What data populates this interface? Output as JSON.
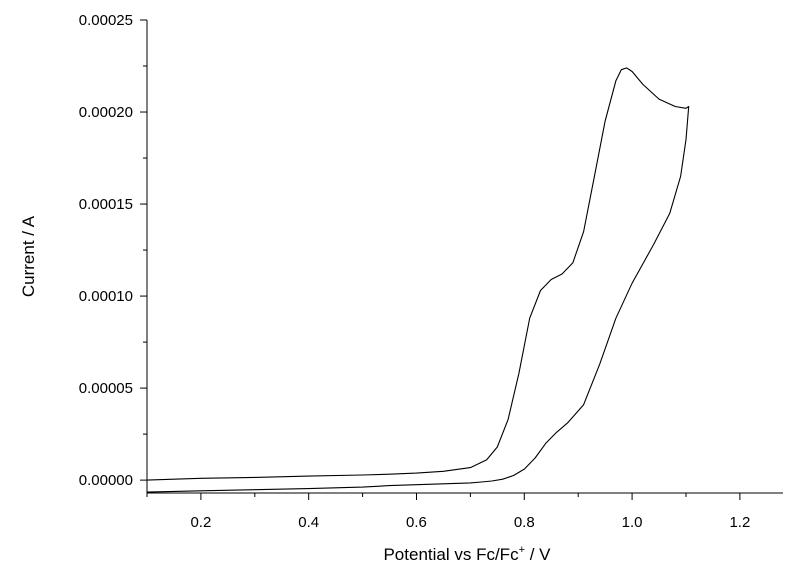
{
  "chart_data": {
    "type": "line",
    "title": "",
    "xlabel": "Potential vs Fc/Fc",
    "xlabel_superscript": "+",
    "xlabel_suffix": " / V",
    "ylabel": "Current / A",
    "xlim": [
      0.1,
      1.28
    ],
    "ylim": [
      -7e-06,
      0.00025
    ],
    "x_ticks": [
      0.2,
      0.4,
      0.6,
      0.8,
      1.0,
      1.2
    ],
    "x_tick_labels": [
      "0.2",
      "0.4",
      "0.6",
      "0.8",
      "1.0",
      "1.2"
    ],
    "y_ticks": [
      0.0,
      5e-05,
      0.0001,
      0.00015,
      0.0002,
      0.00025
    ],
    "y_tick_labels": [
      "0.00000",
      "0.00005",
      "0.00010",
      "0.00015",
      "0.00020",
      "0.00025"
    ],
    "grid": false,
    "series": [
      {
        "x": [
          0.1,
          0.2,
          0.3,
          0.4,
          0.5,
          0.55,
          0.6,
          0.65,
          0.7,
          0.73,
          0.75,
          0.77,
          0.79,
          0.81,
          0.83,
          0.85,
          0.87,
          0.89,
          0.91,
          0.93,
          0.95,
          0.97,
          0.98,
          0.99,
          1.0,
          1.02,
          1.05,
          1.08,
          1.1,
          1.105,
          1.1,
          1.09,
          1.07,
          1.04,
          1.0,
          0.97,
          0.94,
          0.91,
          0.88,
          0.86,
          0.84,
          0.82,
          0.8,
          0.78,
          0.76,
          0.74,
          0.72,
          0.7,
          0.65,
          0.6,
          0.55,
          0.5,
          0.45,
          0.4,
          0.3,
          0.2,
          0.1
        ],
        "y": [
          0.0,
          1e-06,
          1.5e-06,
          2.2e-06,
          2.8e-06,
          3.2e-06,
          3.8e-06,
          4.8e-06,
          6.8e-06,
          1.1e-05,
          1.8e-05,
          3.3e-05,
          5.8e-05,
          8.8e-05,
          0.000103,
          0.000109,
          0.000112,
          0.000118,
          0.000135,
          0.000165,
          0.000195,
          0.000217,
          0.000223,
          0.000224,
          0.000222,
          0.000215,
          0.000207,
          0.000203,
          0.000202,
          0.000203,
          0.000185,
          0.000165,
          0.000145,
          0.000128,
          0.000107,
          8.8e-05,
          6.3e-05,
          4.1e-05,
          3.1e-05,
          2.6e-05,
          2e-05,
          1.2e-05,
          6e-06,
          2.5e-06,
          5e-07,
          -5e-07,
          -1e-06,
          -1.5e-06,
          -2e-06,
          -2.5e-06,
          -3e-06,
          -3.8e-06,
          -4.2e-06,
          -4.6e-06,
          -5.2e-06,
          -5.8e-06,
          -6.5e-06
        ]
      }
    ]
  }
}
